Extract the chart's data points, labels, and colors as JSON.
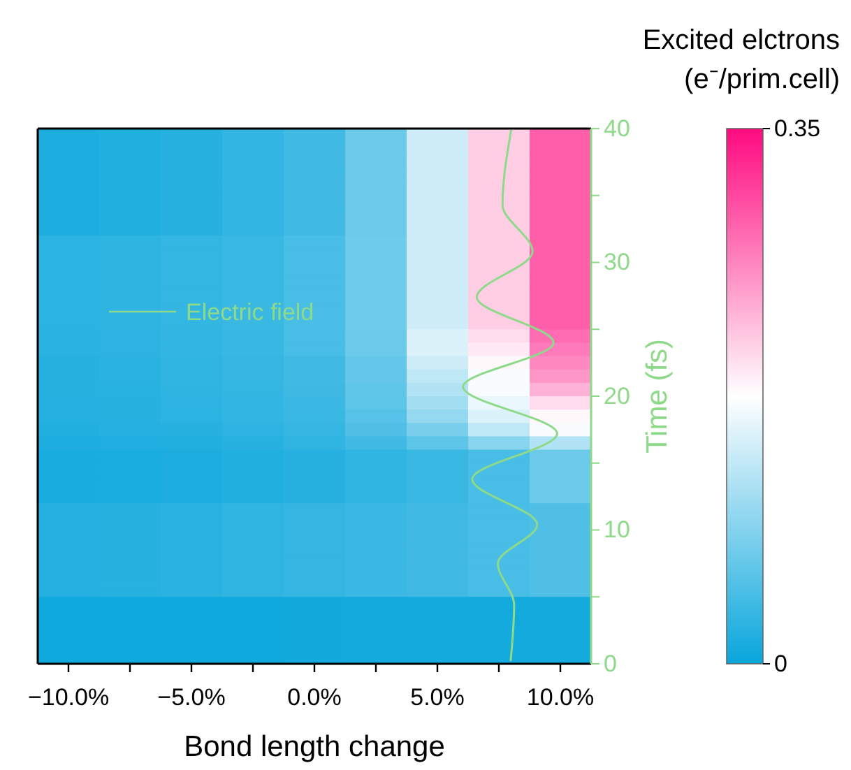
{
  "chart_data": {
    "type": "heatmap",
    "xlabel": "Bond length change",
    "ylabel": "Time (fs)",
    "clabel": "Excited elctrons (e⁻/prim.cell)",
    "x": [
      -10,
      -7.5,
      -5,
      -2.5,
      0,
      2.5,
      5,
      7.5,
      10
    ],
    "y": [
      39.5,
      38.5,
      37.5,
      36.5,
      35.5,
      34.5,
      33.5,
      32.5,
      31.5,
      30.5,
      29.5,
      28.5,
      27.5,
      26.5,
      25.5,
      24.5,
      23.5,
      22.5,
      21.5,
      20.5,
      19.5,
      18.5,
      17.5,
      16.5,
      15.5,
      14.5,
      13.5,
      12.5,
      11.5,
      10.5,
      9.5,
      8.5,
      7.5,
      6.5,
      5.5,
      4.5,
      3.5,
      2.5,
      1.5,
      0.5
    ],
    "cells": [
      [
        0.015,
        0.018,
        0.022,
        0.03,
        0.04,
        0.07,
        0.14,
        0.21,
        0.29
      ],
      [
        0.015,
        0.018,
        0.022,
        0.03,
        0.04,
        0.07,
        0.14,
        0.21,
        0.29
      ],
      [
        0.015,
        0.018,
        0.022,
        0.03,
        0.04,
        0.07,
        0.14,
        0.21,
        0.29
      ],
      [
        0.015,
        0.018,
        0.022,
        0.03,
        0.04,
        0.07,
        0.14,
        0.21,
        0.29
      ],
      [
        0.015,
        0.018,
        0.022,
        0.03,
        0.04,
        0.07,
        0.14,
        0.21,
        0.29
      ],
      [
        0.015,
        0.018,
        0.022,
        0.03,
        0.04,
        0.07,
        0.14,
        0.21,
        0.29
      ],
      [
        0.015,
        0.018,
        0.022,
        0.03,
        0.04,
        0.07,
        0.14,
        0.21,
        0.29
      ],
      [
        0.015,
        0.018,
        0.022,
        0.03,
        0.04,
        0.07,
        0.14,
        0.21,
        0.29
      ],
      [
        0.025,
        0.027,
        0.031,
        0.035,
        0.045,
        0.072,
        0.14,
        0.21,
        0.29
      ],
      [
        0.025,
        0.027,
        0.031,
        0.035,
        0.045,
        0.072,
        0.14,
        0.21,
        0.29
      ],
      [
        0.025,
        0.027,
        0.031,
        0.035,
        0.045,
        0.072,
        0.14,
        0.21,
        0.29
      ],
      [
        0.025,
        0.027,
        0.031,
        0.035,
        0.045,
        0.072,
        0.14,
        0.21,
        0.29
      ],
      [
        0.025,
        0.027,
        0.031,
        0.035,
        0.045,
        0.072,
        0.14,
        0.21,
        0.29
      ],
      [
        0.025,
        0.027,
        0.031,
        0.035,
        0.045,
        0.072,
        0.14,
        0.21,
        0.29
      ],
      [
        0.025,
        0.027,
        0.031,
        0.035,
        0.045,
        0.072,
        0.14,
        0.21,
        0.29
      ],
      [
        0.024,
        0.026,
        0.03,
        0.034,
        0.045,
        0.07,
        0.15,
        0.2,
        0.28
      ],
      [
        0.024,
        0.026,
        0.03,
        0.034,
        0.045,
        0.07,
        0.15,
        0.19,
        0.27
      ],
      [
        0.022,
        0.024,
        0.028,
        0.032,
        0.04,
        0.065,
        0.14,
        0.18,
        0.26
      ],
      [
        0.022,
        0.024,
        0.028,
        0.032,
        0.04,
        0.065,
        0.13,
        0.17,
        0.25
      ],
      [
        0.021,
        0.023,
        0.027,
        0.031,
        0.038,
        0.062,
        0.12,
        0.17,
        0.23
      ],
      [
        0.02,
        0.022,
        0.026,
        0.03,
        0.036,
        0.06,
        0.11,
        0.16,
        0.2
      ],
      [
        0.02,
        0.022,
        0.025,
        0.03,
        0.035,
        0.055,
        0.1,
        0.15,
        0.18
      ],
      [
        0.018,
        0.02,
        0.022,
        0.026,
        0.032,
        0.05,
        0.08,
        0.13,
        0.17
      ],
      [
        0.015,
        0.016,
        0.018,
        0.022,
        0.028,
        0.04,
        0.06,
        0.09,
        0.12
      ],
      [
        0.012,
        0.013,
        0.015,
        0.018,
        0.022,
        0.028,
        0.035,
        0.045,
        0.07
      ],
      [
        0.012,
        0.013,
        0.015,
        0.018,
        0.022,
        0.028,
        0.035,
        0.045,
        0.07
      ],
      [
        0.012,
        0.013,
        0.015,
        0.018,
        0.022,
        0.028,
        0.035,
        0.045,
        0.07
      ],
      [
        0.012,
        0.013,
        0.015,
        0.018,
        0.022,
        0.028,
        0.035,
        0.045,
        0.07
      ],
      [
        0.02,
        0.022,
        0.024,
        0.028,
        0.032,
        0.036,
        0.04,
        0.045,
        0.05
      ],
      [
        0.02,
        0.022,
        0.024,
        0.028,
        0.032,
        0.036,
        0.04,
        0.045,
        0.05
      ],
      [
        0.02,
        0.022,
        0.024,
        0.028,
        0.032,
        0.036,
        0.04,
        0.045,
        0.05
      ],
      [
        0.02,
        0.022,
        0.024,
        0.028,
        0.032,
        0.036,
        0.04,
        0.045,
        0.05
      ],
      [
        0.02,
        0.022,
        0.024,
        0.028,
        0.032,
        0.036,
        0.04,
        0.045,
        0.05
      ],
      [
        0.02,
        0.022,
        0.024,
        0.028,
        0.032,
        0.036,
        0.04,
        0.045,
        0.05
      ],
      [
        0.02,
        0.022,
        0.024,
        0.028,
        0.032,
        0.036,
        0.04,
        0.045,
        0.05
      ],
      [
        0.005,
        0.005,
        0.006,
        0.006,
        0.007,
        0.008,
        0.008,
        0.008,
        0.008
      ],
      [
        0.005,
        0.005,
        0.006,
        0.006,
        0.007,
        0.008,
        0.008,
        0.008,
        0.008
      ],
      [
        0.005,
        0.005,
        0.006,
        0.006,
        0.007,
        0.008,
        0.008,
        0.008,
        0.008
      ],
      [
        0.005,
        0.005,
        0.006,
        0.006,
        0.007,
        0.008,
        0.008,
        0.008,
        0.008
      ],
      [
        0.005,
        0.005,
        0.006,
        0.006,
        0.007,
        0.008,
        0.008,
        0.008,
        0.008
      ]
    ],
    "clim": [
      0,
      0.35
    ],
    "cticks": [
      0,
      0.35
    ],
    "xlim": [
      -11.25,
      11.25
    ],
    "xticks": [
      {
        "value": -10,
        "label": "−10.0%"
      },
      {
        "value": -7.5,
        "label": null
      },
      {
        "value": -5,
        "label": "−5.0%"
      },
      {
        "value": -2.5,
        "label": null
      },
      {
        "value": 0,
        "label": "0.0%"
      },
      {
        "value": 2.5,
        "label": null
      },
      {
        "value": 5,
        "label": "5.0%"
      },
      {
        "value": 7.5,
        "label": null
      },
      {
        "value": 10,
        "label": "10.0%"
      }
    ],
    "ylim": [
      0,
      40
    ],
    "yticks": [
      0,
      {
        "value": 5,
        "label": null
      },
      10,
      {
        "value": 15,
        "label": null
      },
      20,
      {
        "value": 25,
        "label": null
      },
      30,
      {
        "value": 35,
        "label": null
      },
      40
    ],
    "series": [
      {
        "type": "line",
        "name": "Electric field",
        "color": "#8fd98a",
        "x": [
          7.98,
          8.12,
          7.46,
          9.06,
          6.42,
          9.87,
          6.04,
          9.72,
          6.6,
          8.87,
          7.65,
          8.0
        ],
        "values": [
          0.2,
          4.4,
          7.5,
          10.4,
          13.8,
          17.2,
          20.7,
          24.0,
          27.4,
          30.8,
          34.3,
          39.9
        ]
      }
    ],
    "legend": "center left"
  }
}
